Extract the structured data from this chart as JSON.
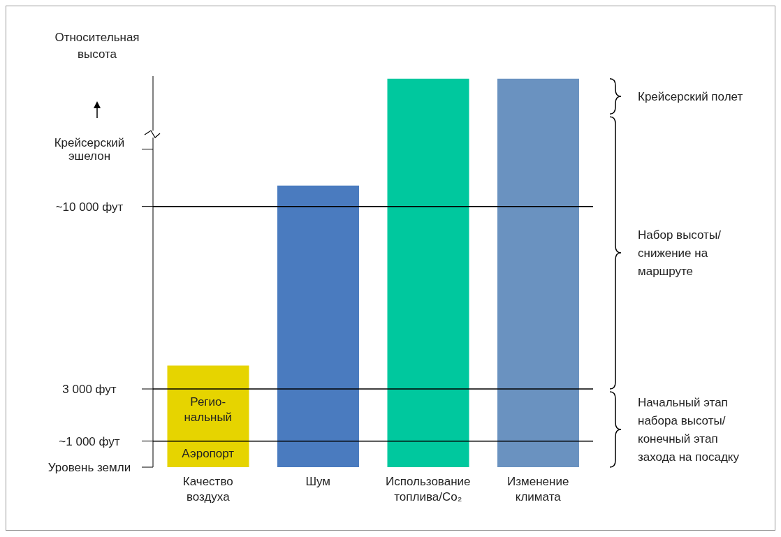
{
  "chart_data": {
    "type": "bar",
    "ylabel": "Относительная высота",
    "categories": [
      "Качество воздуха",
      "Шум",
      "Использование топлива/Co₂",
      "Изменение климата"
    ],
    "values": [
      3900,
      10800,
      14900,
      14900
    ],
    "colors": [
      "#e6d400",
      "#4a7bbf",
      "#00c89e",
      "#6a92c0"
    ],
    "ylim": [
      0,
      15000
    ],
    "yticks": [
      {
        "value": 0,
        "label": "Уровень земли"
      },
      {
        "value": 1000,
        "label": "~1 000 фут"
      },
      {
        "value": 3000,
        "label": "3 000 фут"
      },
      {
        "value": 10000,
        "label": "~10 000 фут"
      },
      {
        "value": 12200,
        "label": "Крейсерский эшелон"
      }
    ],
    "ref_lines": [
      {
        "axis": "y",
        "value": 1000
      },
      {
        "axis": "y",
        "value": 3000
      },
      {
        "axis": "y",
        "value": 10000
      }
    ],
    "annotations": [
      "Регио-нальный",
      "Аэропорт",
      "Крейсерский полет",
      "Набор высоты/ снижение на маршруте",
      "Начальный этап набора высоты/ конечный этап захода на посадку"
    ]
  }
}
